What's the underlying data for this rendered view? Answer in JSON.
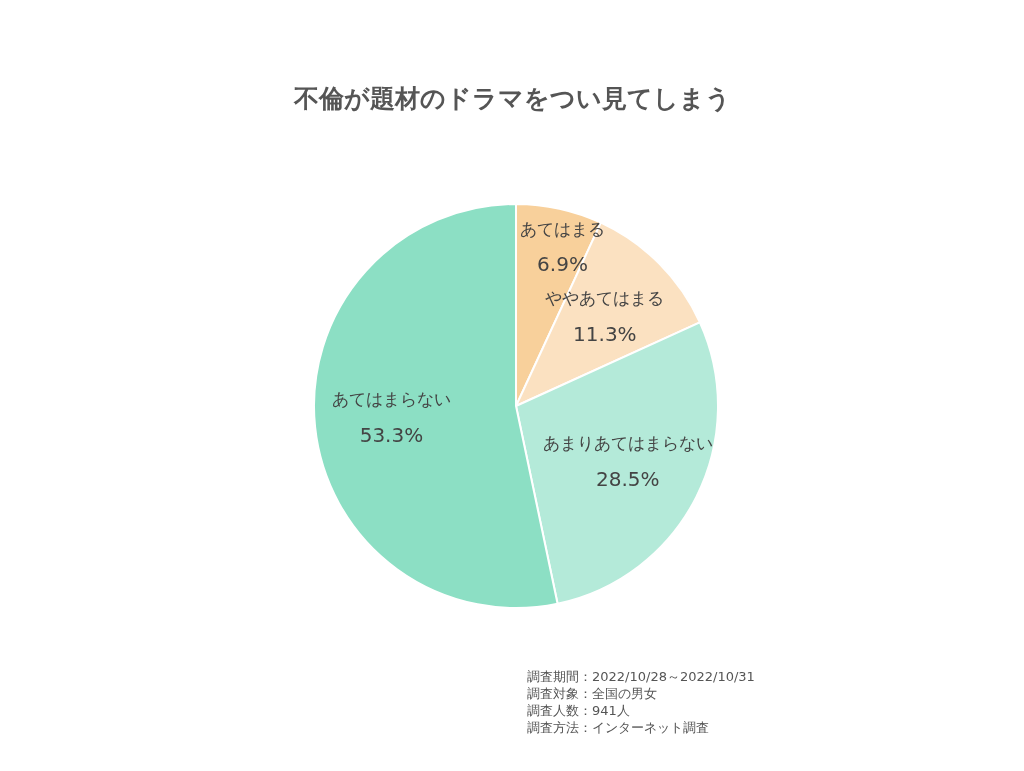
{
  "chart_data": {
    "type": "pie",
    "title": "不倫が題材のドラマをつい見てしまう",
    "categories": [
      "あてはまる",
      "ややあてはまる",
      "あまりあてはまらない",
      "あてはまらない"
    ],
    "values": [
      6.9,
      11.3,
      28.5,
      53.3
    ],
    "value_labels": [
      "6.9%",
      "11.3%",
      "28.5%",
      "53.3%"
    ],
    "colors": [
      "#f8d09b",
      "#fbe1c1",
      "#b4ead9",
      "#8cdfc4"
    ],
    "legend": false,
    "annotations": [
      "調査期間：2022/10/28～2022/10/31",
      "調査対象：全国の男女",
      "調査人数：941人",
      "調査方法：インターネット調査"
    ]
  }
}
